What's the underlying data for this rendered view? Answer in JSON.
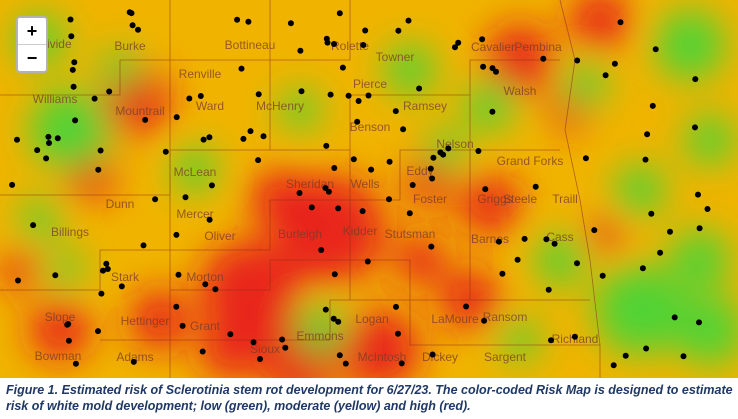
{
  "zoom": {
    "in": "+",
    "out": "−"
  },
  "counties": [
    "Divide",
    "Burke",
    "Bottineau",
    "Rolette",
    "Towner",
    "Cavalier",
    "Pembina",
    "Renville",
    "Pierce",
    "Walsh",
    "Williams",
    "Ward",
    "McHenry",
    "Ramsey",
    "Mountrail",
    "Benson",
    "Nelson",
    "Grand Forks",
    "McLean",
    "Eddy",
    "Sheridan",
    "Wells",
    "Dunn",
    "Mercer",
    "Foster",
    "Griggs",
    "Steele",
    "Traill",
    "Oliver",
    "Burleigh",
    "Kidder",
    "Stutsman",
    "Barnes",
    "Cass",
    "Billings",
    "Stark",
    "Morton",
    "Slope",
    "Hettinger",
    "Grant",
    "Sioux",
    "Emmons",
    "Logan",
    "LaMoure",
    "Ransom",
    "Richland",
    "Bowman",
    "Adams",
    "McIntosh",
    "Dickey",
    "Sargent"
  ],
  "caption": "Figure 1. Estimated risk of Sclerotinia stem rot development for 6/27/23. The color-coded Risk Map is designed to estimate risk of white mold development; low (green), moderate (yellow) and high (red)."
}
